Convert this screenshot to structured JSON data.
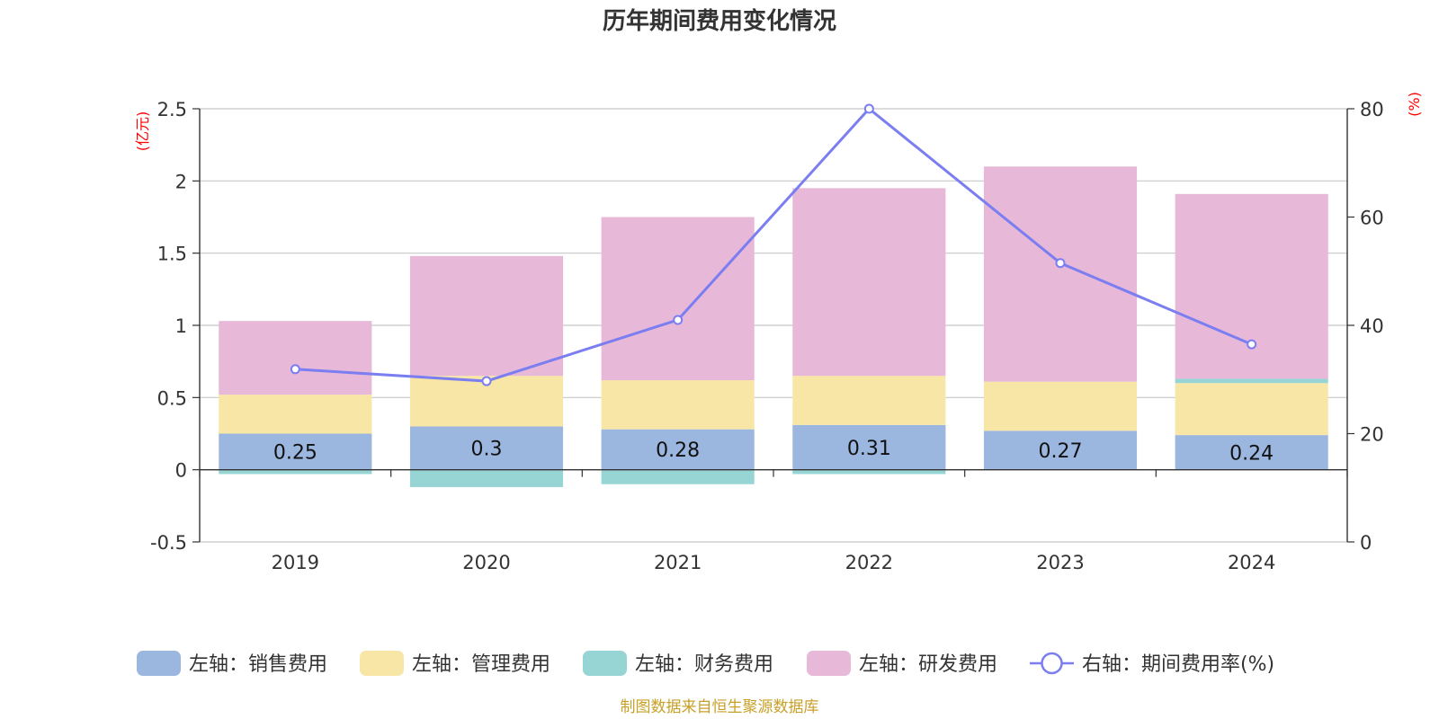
{
  "chart_data": {
    "type": "bar",
    "title": "历年期间费用变化情况",
    "categories": [
      "2019",
      "2020",
      "2021",
      "2022",
      "2023",
      "2024"
    ],
    "left_axis": {
      "unit": "(亿元)",
      "ylim": [
        -0.5,
        2.5
      ],
      "ticks": [
        -0.5,
        0,
        0.5,
        1,
        1.5,
        2,
        2.5
      ]
    },
    "right_axis": {
      "unit": "(%)",
      "ylim": [
        0,
        80
      ],
      "ticks": [
        0,
        20,
        40,
        60,
        80
      ]
    },
    "series": [
      {
        "name": "左轴：销售费用",
        "axis": "left",
        "type": "bar",
        "color": "#9bb7e0",
        "values": [
          0.25,
          0.3,
          0.28,
          0.31,
          0.27,
          0.24
        ],
        "labels": [
          "0.25",
          "0.3",
          "0.28",
          "0.31",
          "0.27",
          "0.24"
        ]
      },
      {
        "name": "左轴：管理费用",
        "axis": "left",
        "type": "bar",
        "color": "#f7e6a6",
        "values": [
          0.27,
          0.35,
          0.34,
          0.34,
          0.34,
          0.36
        ]
      },
      {
        "name": "左轴：财务费用",
        "axis": "left",
        "type": "bar",
        "color": "#97d4d4",
        "values": [
          -0.03,
          -0.12,
          -0.1,
          -0.03,
          0.0,
          0.03
        ]
      },
      {
        "name": "左轴：研发费用",
        "axis": "left",
        "type": "bar",
        "color": "#e8b8d9",
        "values": [
          0.51,
          0.83,
          1.13,
          1.3,
          1.49,
          1.28
        ]
      },
      {
        "name": "右轴：期间费用率(%)",
        "axis": "right",
        "type": "line",
        "color": "#7b7ef0",
        "values": [
          31.9,
          29.7,
          41.0,
          80.0,
          51.5,
          36.5
        ]
      }
    ],
    "legend_position": "bottom",
    "grid": true,
    "source": "制图数据来自恒生聚源数据库"
  }
}
